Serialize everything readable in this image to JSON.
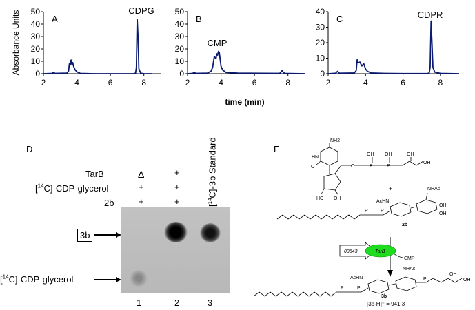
{
  "chart_data": [
    {
      "type": "line",
      "panel_letter": "A",
      "annotation": "CDPG",
      "ylabel": "Absorbance Units",
      "xlabel": "",
      "xlim": [
        2,
        9
      ],
      "ylim": [
        0,
        50
      ],
      "x_ticks": [
        "2",
        "4",
        "6",
        "8"
      ],
      "y_ticks": [
        "0",
        "10",
        "20",
        "30",
        "40",
        "50"
      ],
      "series": [
        {
          "x": [
            2.0,
            2.5,
            2.6,
            2.7,
            3.4,
            3.5,
            3.55,
            3.6,
            3.65,
            3.7,
            3.75,
            3.8,
            3.9,
            4.0,
            4.2,
            5.0,
            7.4,
            7.5,
            7.55,
            7.6,
            7.65,
            7.7,
            7.8,
            8.0,
            8.5
          ],
          "y": [
            0,
            0.3,
            1,
            0.3,
            0.5,
            2,
            8,
            7,
            11,
            7,
            9,
            6,
            3,
            1.5,
            0.3,
            0,
            0,
            0.5,
            5,
            44,
            30,
            4,
            0.5,
            0,
            0
          ]
        }
      ]
    },
    {
      "type": "line",
      "panel_letter": "B",
      "annotation": "CMP",
      "ylabel": "",
      "xlabel": "time (min)",
      "xlim": [
        2,
        9
      ],
      "ylim": [
        0,
        50
      ],
      "x_ticks": [
        "2",
        "4",
        "6",
        "8"
      ],
      "y_ticks": [
        "0",
        "10",
        "20",
        "30",
        "40",
        "50"
      ],
      "series": [
        {
          "x": [
            2.0,
            2.3,
            2.4,
            2.5,
            3.2,
            3.4,
            3.5,
            3.6,
            3.7,
            3.75,
            3.8,
            3.85,
            3.9,
            4.0,
            4.1,
            4.3,
            5.0,
            7.5,
            7.6,
            7.65,
            7.7,
            7.8,
            9.0
          ],
          "y": [
            0,
            0.3,
            1,
            0.3,
            0.5,
            2,
            5,
            14,
            12,
            16,
            15,
            18,
            17,
            6,
            3,
            1,
            0.5,
            0.3,
            1.5,
            2.5,
            1.5,
            0.3,
            0
          ]
        }
      ]
    },
    {
      "type": "line",
      "panel_letter": "C",
      "annotation": "CDPR",
      "ylabel": "",
      "xlabel": "",
      "xlim": [
        2,
        9
      ],
      "ylim": [
        0,
        40
      ],
      "x_ticks": [
        "2",
        "4",
        "6",
        "8"
      ],
      "y_ticks": [
        "0",
        "10",
        "20",
        "30",
        "40"
      ],
      "series": [
        {
          "x": [
            2.0,
            2.4,
            2.5,
            2.6,
            3.4,
            3.5,
            3.55,
            3.6,
            3.7,
            3.8,
            3.9,
            4.0,
            4.1,
            4.3,
            5.0,
            6.0,
            7.3,
            7.4,
            7.45,
            7.5,
            7.55,
            7.6,
            7.7,
            8.0,
            9.0
          ],
          "y": [
            0,
            0.3,
            1.5,
            0.3,
            0.5,
            2,
            9,
            7,
            7.5,
            5,
            6.5,
            3,
            1.5,
            0.5,
            0.2,
            0.1,
            0.1,
            0.5,
            4,
            34,
            20,
            4,
            1,
            0.2,
            0
          ]
        }
      ]
    }
  ],
  "panel_d": {
    "letter": "D",
    "row_labels": [
      "TarB",
      "[14C]-CDP-glycerol",
      "2b"
    ],
    "col1": [
      "Δ",
      "+",
      "+"
    ],
    "col2": [
      "+",
      "+",
      "+"
    ],
    "standard_label": "[14C]-3b Standard",
    "band_label_3b": "3b",
    "band_label_cdpg": "[14C]-CDP-glycerol",
    "lanes": [
      "1",
      "2",
      "3"
    ]
  },
  "panel_e": {
    "letter": "E",
    "nh2": "NH2",
    "hn": "HN",
    "o": "O",
    "p": "P",
    "oh": "OH",
    "ho": "HO",
    "plus": "+",
    "nhac": "NHAc",
    "achn": "AcHN",
    "compound_2b": "2b",
    "compound_3b": "3b",
    "gene": "00643",
    "enzyme": "TarB",
    "byproduct": "CMP",
    "mass": "[3b-H]⁻ = 941.3"
  }
}
